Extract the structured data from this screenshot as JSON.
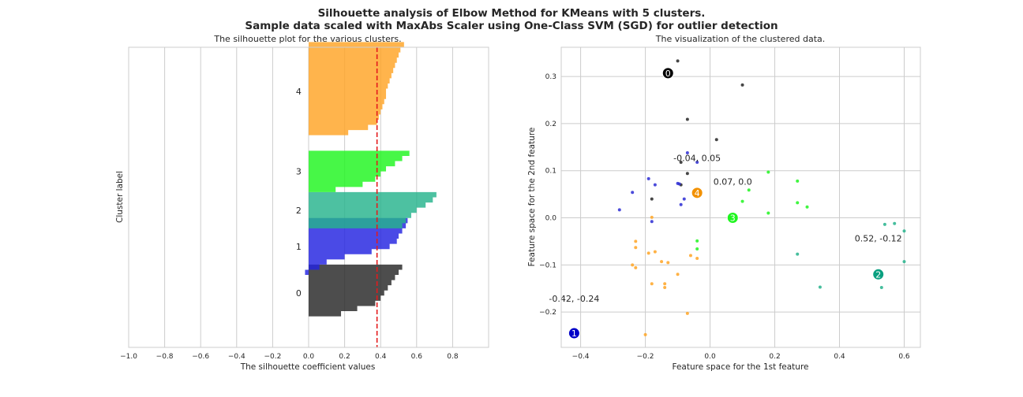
{
  "suptitle_line1": "Silhouette analysis of Elbow Method for KMeans with 5 clusters.",
  "suptitle_line2": "Sample data scaled with MaxAbs Scaler using One-Class SVM (SGD) for outlier detection",
  "chart_data": [
    {
      "type": "area",
      "title": "The silhouette plot for the various clusters.",
      "xlabel": "The silhouette coefficient values",
      "ylabel": "Cluster label",
      "xlim": [
        -1.0,
        1.0
      ],
      "xticks": [
        -1.0,
        -0.8,
        -0.6,
        -0.4,
        -0.2,
        0.0,
        0.2,
        0.4,
        0.6,
        0.8
      ],
      "xtick_labels": [
        "−1.0",
        "−0.8",
        "−0.6",
        "−0.4",
        "−0.2",
        "0.0",
        "0.2",
        "0.4",
        "0.6",
        "0.8"
      ],
      "ylim": [
        0,
        58
      ],
      "average_silhouette": 0.38,
      "average_line_color": "#e41a1c",
      "grid": true,
      "clusters": [
        {
          "label": "0",
          "color": "#262626",
          "y_lower": 5,
          "values": [
            0.52,
            0.5,
            0.48,
            0.46,
            0.44,
            0.42,
            0.4,
            0.37,
            0.27,
            0.18,
            0.0
          ]
        },
        {
          "label": "1",
          "color": "#2222e0",
          "y_lower": 14,
          "values": [
            0.55,
            0.54,
            0.52,
            0.5,
            0.49,
            0.45,
            0.35,
            0.2,
            0.1,
            0.06,
            -0.02
          ]
        },
        {
          "label": "2",
          "color": "#26b38c",
          "y_lower": 23,
          "values": [
            0.71,
            0.69,
            0.65,
            0.6,
            0.57,
            0.54,
            0.52
          ]
        },
        {
          "label": "3",
          "color": "#1ff51f",
          "y_lower": 30,
          "values": [
            0.56,
            0.52,
            0.48,
            0.43,
            0.4,
            0.37,
            0.3,
            0.15
          ]
        },
        {
          "label": "4",
          "color": "#ffa424",
          "y_lower": 40,
          "values": [
            0.53,
            0.51,
            0.5,
            0.49,
            0.48,
            0.47,
            0.46,
            0.45,
            0.44,
            0.43,
            0.43,
            0.42,
            0.41,
            0.4,
            0.39,
            0.38,
            0.33,
            0.22,
            0.0
          ]
        }
      ]
    },
    {
      "type": "scatter",
      "title": "The visualization of the clustered data.",
      "xlabel": "Feature space for the 1st feature",
      "ylabel": "Feature space for the 2nd feature",
      "xlim": [
        -0.46,
        0.65
      ],
      "ylim": [
        -0.275,
        0.362
      ],
      "xticks": [
        -0.4,
        -0.2,
        0.0,
        0.2,
        0.4,
        0.6
      ],
      "xtick_labels": [
        "−0.4",
        "−0.2",
        "0.0",
        "0.2",
        "0.4",
        "0.6"
      ],
      "yticks": [
        -0.2,
        -0.1,
        0.0,
        0.1,
        0.2,
        0.3
      ],
      "ytick_labels": [
        "−0.2",
        "−0.1",
        "0.0",
        "0.1",
        "0.2",
        "0.3"
      ],
      "grid": true,
      "series": [
        {
          "label": "0",
          "color": "#262626",
          "points": [
            [
              -0.1,
              0.333
            ],
            [
              0.1,
              0.282
            ],
            [
              -0.07,
              0.209
            ],
            [
              0.02,
              0.166
            ],
            [
              -0.09,
              0.118
            ],
            [
              -0.07,
              0.094
            ],
            [
              -0.18,
              0.04
            ],
            [
              -0.09,
              0.07
            ]
          ]
        },
        {
          "label": "1",
          "color": "#2b2bd4",
          "points": [
            [
              -0.07,
              0.138
            ],
            [
              -0.04,
              0.118
            ],
            [
              -0.19,
              0.083
            ],
            [
              -0.17,
              0.07
            ],
            [
              -0.1,
              0.073
            ],
            [
              -0.095,
              0.072
            ],
            [
              -0.24,
              0.054
            ],
            [
              -0.08,
              0.04
            ],
            [
              -0.09,
              0.028
            ],
            [
              -0.28,
              0.017
            ],
            [
              -0.18,
              -0.008
            ]
          ]
        },
        {
          "label": "2",
          "color": "#26b38c",
          "points": [
            [
              0.54,
              -0.014
            ],
            [
              0.57,
              -0.012
            ],
            [
              0.6,
              -0.028
            ],
            [
              0.6,
              -0.093
            ],
            [
              0.27,
              -0.077
            ],
            [
              0.34,
              -0.147
            ],
            [
              0.53,
              -0.148
            ]
          ]
        },
        {
          "label": "3",
          "color": "#1ff51f",
          "points": [
            [
              0.18,
              0.097
            ],
            [
              0.27,
              0.078
            ],
            [
              0.12,
              0.059
            ],
            [
              0.1,
              0.035
            ],
            [
              0.27,
              0.032
            ],
            [
              0.3,
              0.023
            ],
            [
              0.18,
              0.01
            ],
            [
              -0.04,
              -0.049
            ],
            [
              -0.04,
              -0.066
            ]
          ]
        },
        {
          "label": "4",
          "color": "#ffa424",
          "points": [
            [
              -0.18,
              0.001
            ],
            [
              -0.23,
              -0.05
            ],
            [
              -0.23,
              -0.063
            ],
            [
              -0.19,
              -0.075
            ],
            [
              -0.17,
              -0.072
            ],
            [
              -0.04,
              -0.086
            ],
            [
              -0.06,
              -0.08
            ],
            [
              -0.15,
              -0.093
            ],
            [
              -0.13,
              -0.095
            ],
            [
              -0.24,
              -0.1
            ],
            [
              -0.23,
              -0.106
            ],
            [
              -0.1,
              -0.12
            ],
            [
              -0.18,
              -0.14
            ],
            [
              -0.14,
              -0.14
            ],
            [
              -0.14,
              -0.148
            ],
            [
              -0.07,
              -0.203
            ],
            [
              -0.2,
              -0.248
            ]
          ]
        }
      ],
      "centers": [
        {
          "label": "0",
          "x": -0.13,
          "y": 0.307,
          "color": "#000000"
        },
        {
          "label": "1",
          "x": -0.42,
          "y": -0.245,
          "color": "#0000c8"
        },
        {
          "label": "2",
          "x": 0.52,
          "y": -0.12,
          "color": "#0aa080"
        },
        {
          "label": "3",
          "x": 0.07,
          "y": 0.0,
          "color": "#1ff51f"
        },
        {
          "label": "4",
          "x": -0.04,
          "y": 0.053,
          "color": "#f29100"
        }
      ],
      "annotations": [
        {
          "text": "-0.04, 0.05",
          "x": -0.04,
          "y": 0.12
        },
        {
          "text": "0.07, 0.0",
          "x": 0.07,
          "y": 0.07
        },
        {
          "text": "0.52, -0.12",
          "x": 0.52,
          "y": -0.05
        },
        {
          "text": "-0.42, -0.24",
          "x": -0.42,
          "y": -0.178
        }
      ]
    }
  ]
}
